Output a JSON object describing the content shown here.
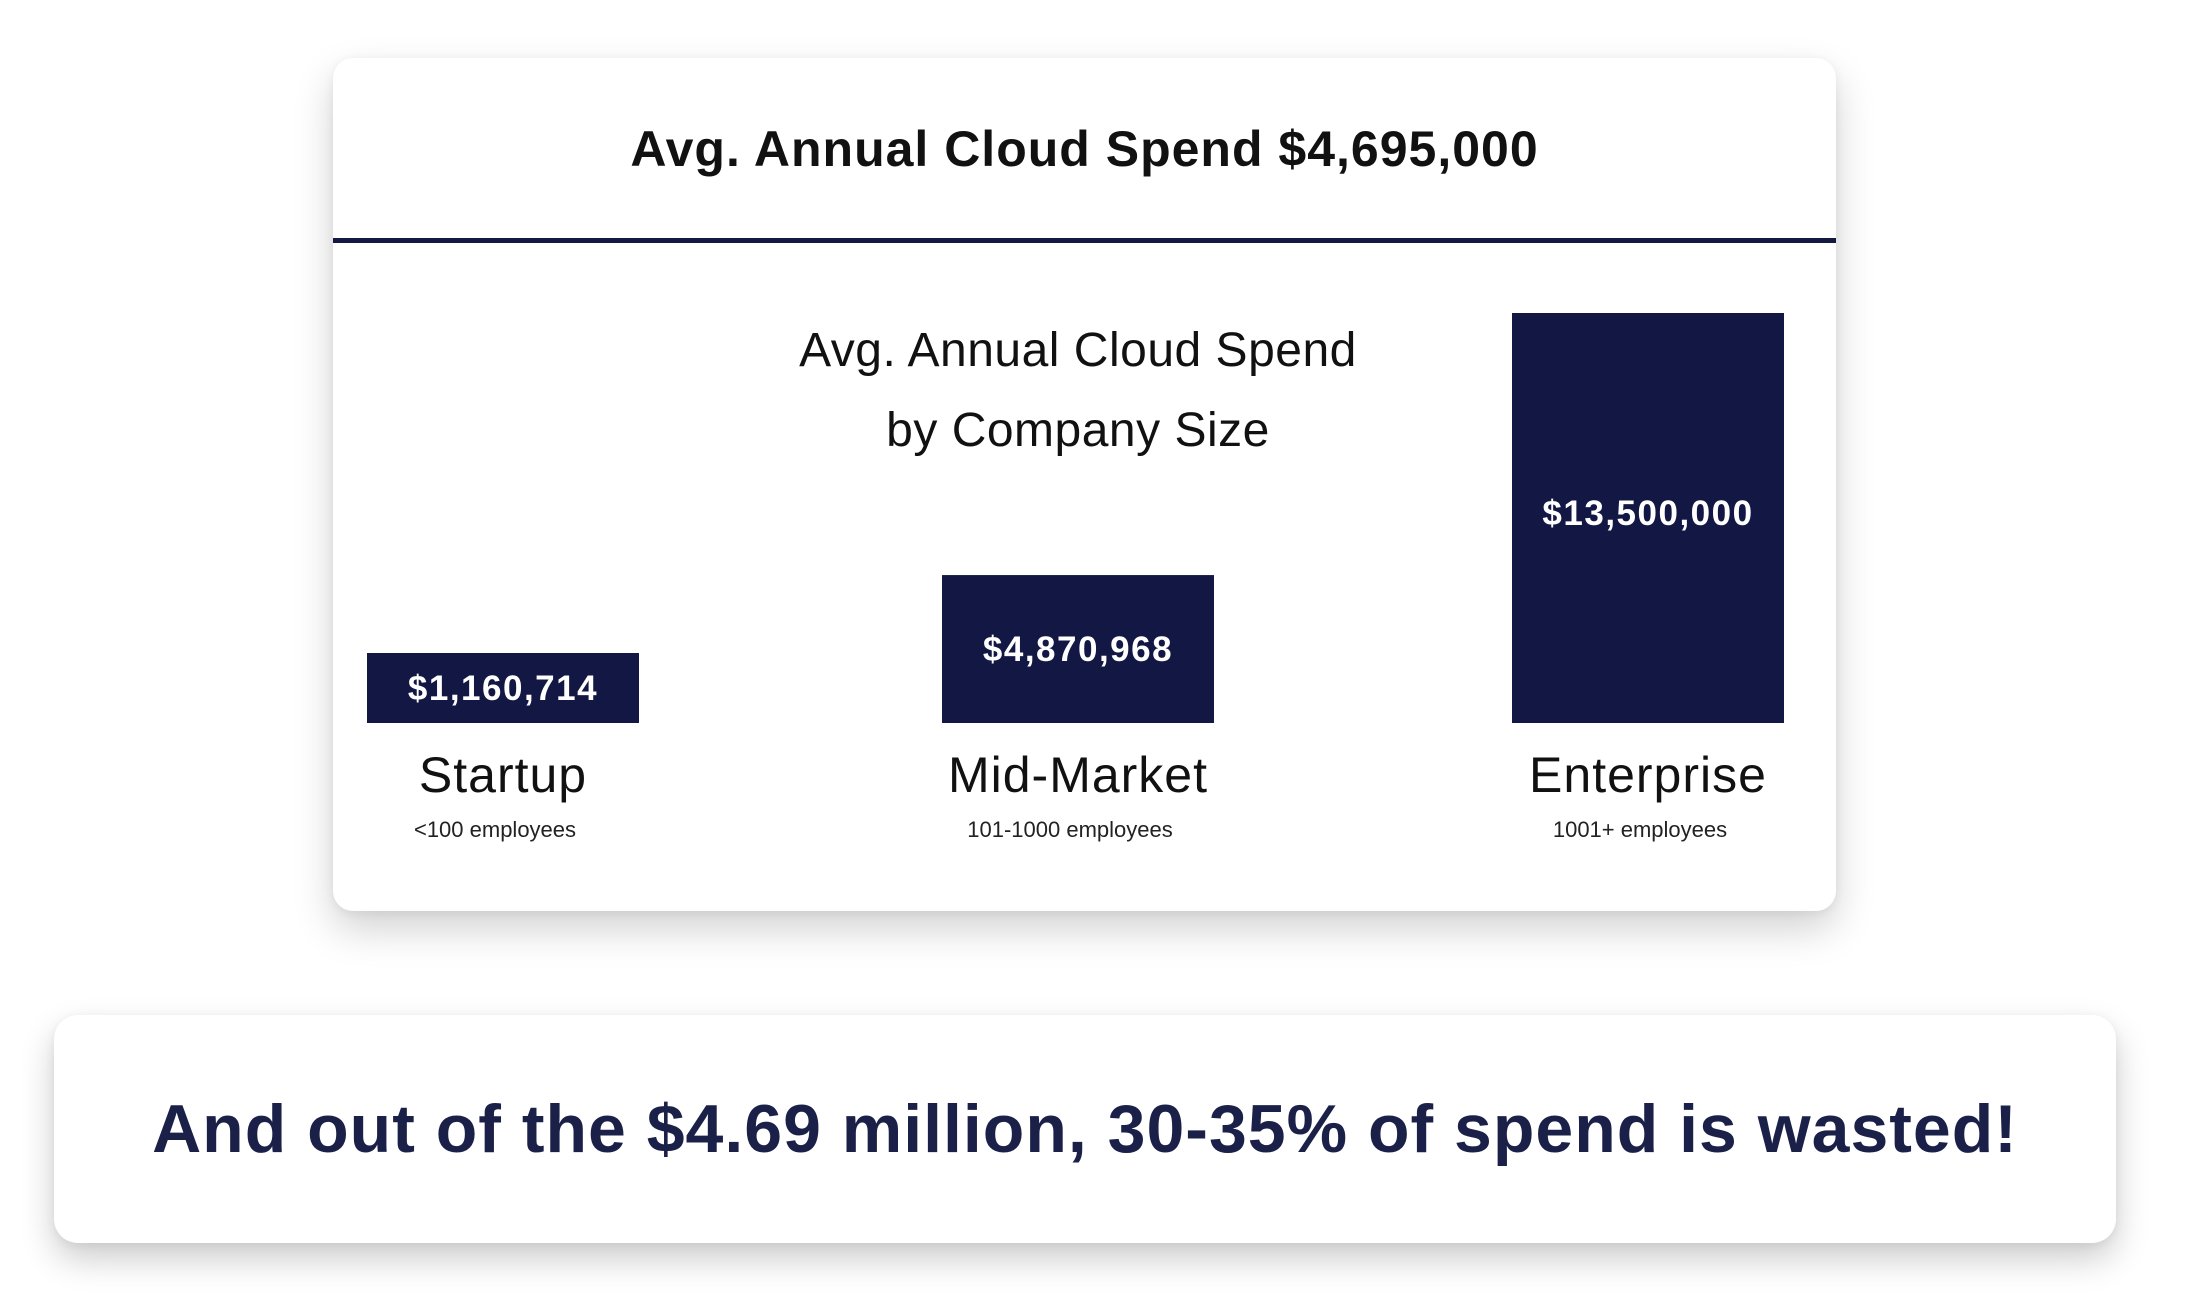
{
  "headline": "Avg. Annual Cloud Spend $4,695,000",
  "colors": {
    "bar": "#121744",
    "rule": "#141942",
    "banner_text": "#1a2048"
  },
  "chart_data": {
    "type": "bar",
    "title_lines": [
      "Avg. Annual Cloud Spend",
      "by Company Size"
    ],
    "categories": [
      "Startup",
      "Mid-Market",
      "Enterprise"
    ],
    "subcategories": [
      "<100 employees",
      "101-1000 employees",
      "1001+ employees"
    ],
    "values": [
      1160714,
      4870968,
      13500000
    ],
    "value_labels": [
      "$1,160,714",
      "$4,870,968",
      "$13,500,000"
    ],
    "ylim": [
      0,
      13500000
    ],
    "grid": false,
    "legend": "none"
  },
  "banner": {
    "text": "And out of the $4.69 million, 30-35% of spend is wasted!"
  }
}
